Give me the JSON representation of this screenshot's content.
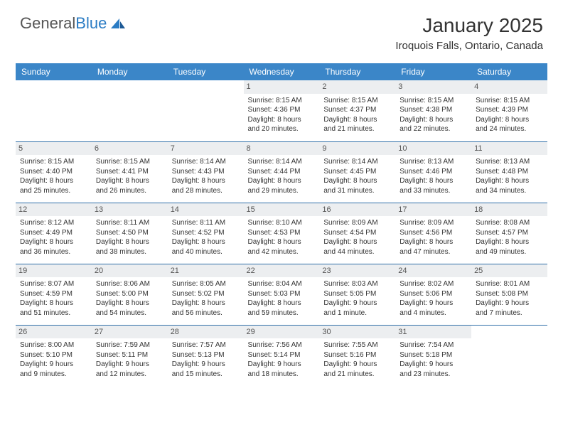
{
  "logo": {
    "text1": "General",
    "text2": "Blue"
  },
  "title": "January 2025",
  "location": "Iroquois Falls, Ontario, Canada",
  "colors": {
    "header_bg": "#3b86c8",
    "header_text": "#ffffff",
    "daynum_bg": "#eceef0",
    "row_border": "#2f6fa8",
    "logo_blue": "#2b7cc4"
  },
  "day_headers": [
    "Sunday",
    "Monday",
    "Tuesday",
    "Wednesday",
    "Thursday",
    "Friday",
    "Saturday"
  ],
  "weeks": [
    [
      {
        "n": "",
        "sr": "",
        "ss": "",
        "dl1": "",
        "dl2": ""
      },
      {
        "n": "",
        "sr": "",
        "ss": "",
        "dl1": "",
        "dl2": ""
      },
      {
        "n": "",
        "sr": "",
        "ss": "",
        "dl1": "",
        "dl2": ""
      },
      {
        "n": "1",
        "sr": "Sunrise: 8:15 AM",
        "ss": "Sunset: 4:36 PM",
        "dl1": "Daylight: 8 hours",
        "dl2": "and 20 minutes."
      },
      {
        "n": "2",
        "sr": "Sunrise: 8:15 AM",
        "ss": "Sunset: 4:37 PM",
        "dl1": "Daylight: 8 hours",
        "dl2": "and 21 minutes."
      },
      {
        "n": "3",
        "sr": "Sunrise: 8:15 AM",
        "ss": "Sunset: 4:38 PM",
        "dl1": "Daylight: 8 hours",
        "dl2": "and 22 minutes."
      },
      {
        "n": "4",
        "sr": "Sunrise: 8:15 AM",
        "ss": "Sunset: 4:39 PM",
        "dl1": "Daylight: 8 hours",
        "dl2": "and 24 minutes."
      }
    ],
    [
      {
        "n": "5",
        "sr": "Sunrise: 8:15 AM",
        "ss": "Sunset: 4:40 PM",
        "dl1": "Daylight: 8 hours",
        "dl2": "and 25 minutes."
      },
      {
        "n": "6",
        "sr": "Sunrise: 8:15 AM",
        "ss": "Sunset: 4:41 PM",
        "dl1": "Daylight: 8 hours",
        "dl2": "and 26 minutes."
      },
      {
        "n": "7",
        "sr": "Sunrise: 8:14 AM",
        "ss": "Sunset: 4:43 PM",
        "dl1": "Daylight: 8 hours",
        "dl2": "and 28 minutes."
      },
      {
        "n": "8",
        "sr": "Sunrise: 8:14 AM",
        "ss": "Sunset: 4:44 PM",
        "dl1": "Daylight: 8 hours",
        "dl2": "and 29 minutes."
      },
      {
        "n": "9",
        "sr": "Sunrise: 8:14 AM",
        "ss": "Sunset: 4:45 PM",
        "dl1": "Daylight: 8 hours",
        "dl2": "and 31 minutes."
      },
      {
        "n": "10",
        "sr": "Sunrise: 8:13 AM",
        "ss": "Sunset: 4:46 PM",
        "dl1": "Daylight: 8 hours",
        "dl2": "and 33 minutes."
      },
      {
        "n": "11",
        "sr": "Sunrise: 8:13 AM",
        "ss": "Sunset: 4:48 PM",
        "dl1": "Daylight: 8 hours",
        "dl2": "and 34 minutes."
      }
    ],
    [
      {
        "n": "12",
        "sr": "Sunrise: 8:12 AM",
        "ss": "Sunset: 4:49 PM",
        "dl1": "Daylight: 8 hours",
        "dl2": "and 36 minutes."
      },
      {
        "n": "13",
        "sr": "Sunrise: 8:11 AM",
        "ss": "Sunset: 4:50 PM",
        "dl1": "Daylight: 8 hours",
        "dl2": "and 38 minutes."
      },
      {
        "n": "14",
        "sr": "Sunrise: 8:11 AM",
        "ss": "Sunset: 4:52 PM",
        "dl1": "Daylight: 8 hours",
        "dl2": "and 40 minutes."
      },
      {
        "n": "15",
        "sr": "Sunrise: 8:10 AM",
        "ss": "Sunset: 4:53 PM",
        "dl1": "Daylight: 8 hours",
        "dl2": "and 42 minutes."
      },
      {
        "n": "16",
        "sr": "Sunrise: 8:09 AM",
        "ss": "Sunset: 4:54 PM",
        "dl1": "Daylight: 8 hours",
        "dl2": "and 44 minutes."
      },
      {
        "n": "17",
        "sr": "Sunrise: 8:09 AM",
        "ss": "Sunset: 4:56 PM",
        "dl1": "Daylight: 8 hours",
        "dl2": "and 47 minutes."
      },
      {
        "n": "18",
        "sr": "Sunrise: 8:08 AM",
        "ss": "Sunset: 4:57 PM",
        "dl1": "Daylight: 8 hours",
        "dl2": "and 49 minutes."
      }
    ],
    [
      {
        "n": "19",
        "sr": "Sunrise: 8:07 AM",
        "ss": "Sunset: 4:59 PM",
        "dl1": "Daylight: 8 hours",
        "dl2": "and 51 minutes."
      },
      {
        "n": "20",
        "sr": "Sunrise: 8:06 AM",
        "ss": "Sunset: 5:00 PM",
        "dl1": "Daylight: 8 hours",
        "dl2": "and 54 minutes."
      },
      {
        "n": "21",
        "sr": "Sunrise: 8:05 AM",
        "ss": "Sunset: 5:02 PM",
        "dl1": "Daylight: 8 hours",
        "dl2": "and 56 minutes."
      },
      {
        "n": "22",
        "sr": "Sunrise: 8:04 AM",
        "ss": "Sunset: 5:03 PM",
        "dl1": "Daylight: 8 hours",
        "dl2": "and 59 minutes."
      },
      {
        "n": "23",
        "sr": "Sunrise: 8:03 AM",
        "ss": "Sunset: 5:05 PM",
        "dl1": "Daylight: 9 hours",
        "dl2": "and 1 minute."
      },
      {
        "n": "24",
        "sr": "Sunrise: 8:02 AM",
        "ss": "Sunset: 5:06 PM",
        "dl1": "Daylight: 9 hours",
        "dl2": "and 4 minutes."
      },
      {
        "n": "25",
        "sr": "Sunrise: 8:01 AM",
        "ss": "Sunset: 5:08 PM",
        "dl1": "Daylight: 9 hours",
        "dl2": "and 7 minutes."
      }
    ],
    [
      {
        "n": "26",
        "sr": "Sunrise: 8:00 AM",
        "ss": "Sunset: 5:10 PM",
        "dl1": "Daylight: 9 hours",
        "dl2": "and 9 minutes."
      },
      {
        "n": "27",
        "sr": "Sunrise: 7:59 AM",
        "ss": "Sunset: 5:11 PM",
        "dl1": "Daylight: 9 hours",
        "dl2": "and 12 minutes."
      },
      {
        "n": "28",
        "sr": "Sunrise: 7:57 AM",
        "ss": "Sunset: 5:13 PM",
        "dl1": "Daylight: 9 hours",
        "dl2": "and 15 minutes."
      },
      {
        "n": "29",
        "sr": "Sunrise: 7:56 AM",
        "ss": "Sunset: 5:14 PM",
        "dl1": "Daylight: 9 hours",
        "dl2": "and 18 minutes."
      },
      {
        "n": "30",
        "sr": "Sunrise: 7:55 AM",
        "ss": "Sunset: 5:16 PM",
        "dl1": "Daylight: 9 hours",
        "dl2": "and 21 minutes."
      },
      {
        "n": "31",
        "sr": "Sunrise: 7:54 AM",
        "ss": "Sunset: 5:18 PM",
        "dl1": "Daylight: 9 hours",
        "dl2": "and 23 minutes."
      },
      {
        "n": "",
        "sr": "",
        "ss": "",
        "dl1": "",
        "dl2": ""
      }
    ]
  ]
}
